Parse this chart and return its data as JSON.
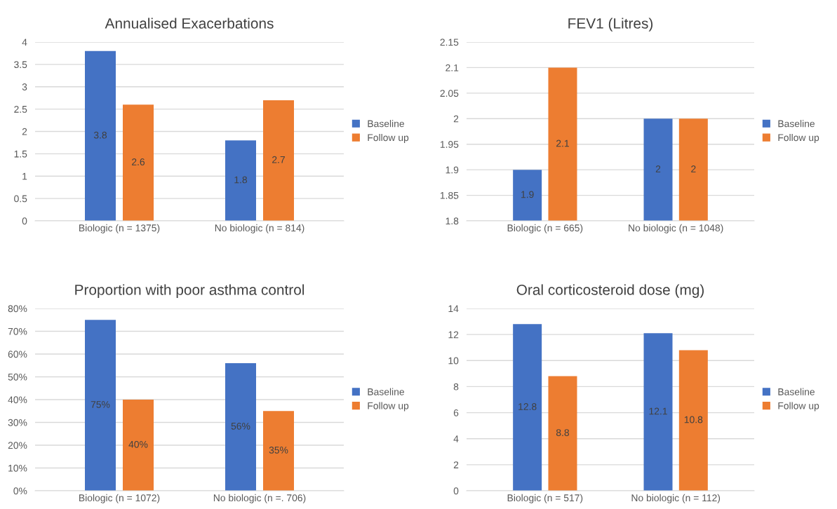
{
  "chart_data": [
    {
      "type": "bar",
      "title": "Annualised Exacerbations",
      "categories": [
        "Biologic (n = 1375)",
        "No biologic (n = 814)"
      ],
      "series": [
        {
          "name": "Baseline",
          "color": "#4472c4",
          "values": [
            3.8,
            1.8
          ]
        },
        {
          "name": "Follow up",
          "color": "#ed7d31",
          "values": [
            2.6,
            2.7
          ]
        }
      ],
      "ylim": [
        0,
        4
      ],
      "yticks": [
        0,
        0.5,
        1,
        1.5,
        2,
        2.5,
        3,
        3.5,
        4
      ],
      "grid": "y",
      "legend": "right",
      "data_labels": true
    },
    {
      "type": "bar",
      "title": "FEV1 (Litres)",
      "categories": [
        "Biologic (n = 665)",
        "No biologic (n = 1048)"
      ],
      "series": [
        {
          "name": "Baseline",
          "color": "#4472c4",
          "values": [
            1.9,
            2
          ]
        },
        {
          "name": "Follow up",
          "color": "#ed7d31",
          "values": [
            2.1,
            2
          ]
        }
      ],
      "ylim": [
        1.8,
        2.15
      ],
      "yticks": [
        1.8,
        1.85,
        1.9,
        1.95,
        2,
        2.05,
        2.1,
        2.15
      ],
      "grid": "y",
      "legend": "right",
      "data_labels": true
    },
    {
      "type": "bar",
      "title": "Proportion with poor asthma control",
      "categories": [
        "Biologic (n = 1072)",
        "No biologic (n =. 706)"
      ],
      "series": [
        {
          "name": "Baseline",
          "color": "#4472c4",
          "values": [
            75,
            56
          ],
          "value_labels": [
            "75%",
            "56%"
          ]
        },
        {
          "name": "Follow up",
          "color": "#ed7d31",
          "values": [
            40,
            35
          ],
          "value_labels": [
            "40%",
            "35%"
          ]
        }
      ],
      "ylim": [
        0,
        80
      ],
      "yticks": [
        {
          "value": 0,
          "label": "0%"
        },
        {
          "value": 10,
          "label": "10%"
        },
        {
          "value": 20,
          "label": "20%"
        },
        {
          "value": 30,
          "label": "30%"
        },
        {
          "value": 40,
          "label": "40%"
        },
        {
          "value": 50,
          "label": "50%"
        },
        {
          "value": 60,
          "label": "60%"
        },
        {
          "value": 70,
          "label": "70%"
        },
        {
          "value": 80,
          "label": "80%"
        }
      ],
      "grid": "y",
      "legend": "right"
    },
    {
      "type": "bar",
      "title": "Oral corticosteroid dose (mg)",
      "categories": [
        "Biologic (n = 517)",
        "No biologic (n = 112)"
      ],
      "series": [
        {
          "name": "Baseline",
          "color": "#4472c4",
          "values": [
            12.8,
            12.1
          ]
        },
        {
          "name": "Follow up",
          "color": "#ed7d31",
          "values": [
            8.8,
            10.8
          ]
        }
      ],
      "ylim": [
        0,
        14
      ],
      "yticks": [
        0,
        2,
        4,
        6,
        8,
        10,
        12,
        14
      ],
      "grid": "y",
      "legend": "right",
      "data_labels": true
    }
  ]
}
